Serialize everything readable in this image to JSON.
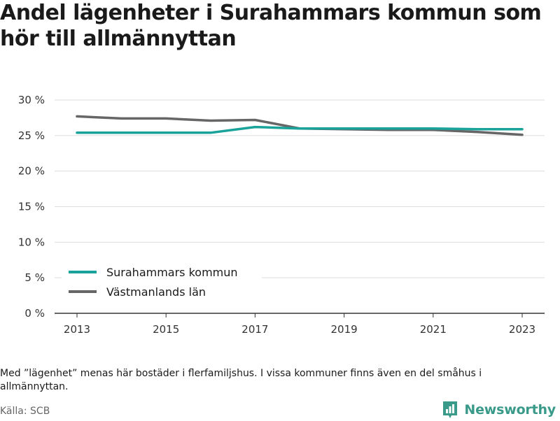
{
  "title": "Andel lägenheter i Surahammars kommun som hör till allmännyttan",
  "note": "Med ”lägenhet” menas här bostäder i flerfamiljshus. I vissa kommuner finns även en del småhus i allmännyttan.",
  "source": "Källa: SCB",
  "brand": {
    "name": "Newsworthy",
    "color": "#3a9a8a",
    "icon": "newsworthy-logo-icon"
  },
  "chart_data": {
    "type": "line",
    "x": [
      2013,
      2014,
      2015,
      2016,
      2017,
      2018,
      2019,
      2020,
      2021,
      2022,
      2023
    ],
    "x_ticks": [
      "2013",
      "2015",
      "2017",
      "2019",
      "2021",
      "2023"
    ],
    "y_ticks": [
      "0 %",
      "5 %",
      "10 %",
      "15 %",
      "20 %",
      "25 %",
      "30 %"
    ],
    "ylim": [
      0,
      30
    ],
    "grid": true,
    "legend_position": "bottom-left",
    "series": [
      {
        "name": "Surahammars kommun",
        "color": "#1aa39a",
        "values": [
          25.4,
          25.4,
          25.4,
          25.4,
          26.2,
          26.0,
          26.0,
          26.0,
          26.0,
          25.9,
          25.9
        ]
      },
      {
        "name": "Västmanlands län",
        "color": "#666666",
        "values": [
          27.7,
          27.4,
          27.4,
          27.1,
          27.2,
          26.0,
          25.9,
          25.8,
          25.8,
          25.5,
          25.1
        ]
      }
    ]
  }
}
